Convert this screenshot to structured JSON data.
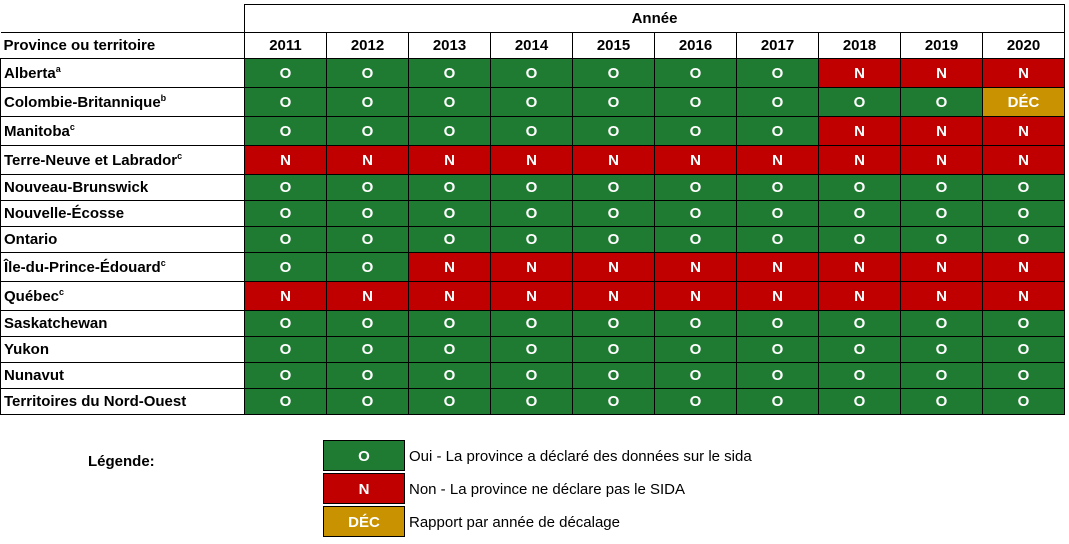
{
  "header": {
    "province_label": "Province ou territoire",
    "year_group_label": "Année",
    "years": [
      "2011",
      "2012",
      "2013",
      "2014",
      "2015",
      "2016",
      "2017",
      "2018",
      "2019",
      "2020"
    ]
  },
  "colors": {
    "O": "#1f7b32",
    "N": "#c00000",
    "DEC": "#c89200"
  },
  "rows": [
    {
      "name": "Alberta",
      "sup": "a",
      "values": [
        "O",
        "O",
        "O",
        "O",
        "O",
        "O",
        "O",
        "N",
        "N",
        "N"
      ]
    },
    {
      "name": "Colombie-Britannique",
      "sup": "b",
      "values": [
        "O",
        "O",
        "O",
        "O",
        "O",
        "O",
        "O",
        "O",
        "O",
        "DÉC"
      ]
    },
    {
      "name": "Manitoba",
      "sup": "c",
      "values": [
        "O",
        "O",
        "O",
        "O",
        "O",
        "O",
        "O",
        "N",
        "N",
        "N"
      ]
    },
    {
      "name": "Terre-Neuve et Labrador",
      "sup": "c",
      "values": [
        "N",
        "N",
        "N",
        "N",
        "N",
        "N",
        "N",
        "N",
        "N",
        "N"
      ]
    },
    {
      "name": "Nouveau-Brunswick",
      "sup": "",
      "values": [
        "O",
        "O",
        "O",
        "O",
        "O",
        "O",
        "O",
        "O",
        "O",
        "O"
      ]
    },
    {
      "name": "Nouvelle-Écosse",
      "sup": "",
      "values": [
        "O",
        "O",
        "O",
        "O",
        "O",
        "O",
        "O",
        "O",
        "O",
        "O"
      ]
    },
    {
      "name": "Ontario",
      "sup": "",
      "values": [
        "O",
        "O",
        "O",
        "O",
        "O",
        "O",
        "O",
        "O",
        "O",
        "O"
      ]
    },
    {
      "name": "Île-du-Prince-Édouard",
      "sup": "c",
      "values": [
        "O",
        "O",
        "N",
        "N",
        "N",
        "N",
        "N",
        "N",
        "N",
        "N"
      ]
    },
    {
      "name": "Québec",
      "sup": "c",
      "values": [
        "N",
        "N",
        "N",
        "N",
        "N",
        "N",
        "N",
        "N",
        "N",
        "N"
      ]
    },
    {
      "name": "Saskatchewan",
      "sup": "",
      "values": [
        "O",
        "O",
        "O",
        "O",
        "O",
        "O",
        "O",
        "O",
        "O",
        "O"
      ]
    },
    {
      "name": "Yukon",
      "sup": "",
      "values": [
        "O",
        "O",
        "O",
        "O",
        "O",
        "O",
        "O",
        "O",
        "O",
        "O"
      ]
    },
    {
      "name": "Nunavut",
      "sup": "",
      "values": [
        "O",
        "O",
        "O",
        "O",
        "O",
        "O",
        "O",
        "O",
        "O",
        "O"
      ]
    },
    {
      "name": "Territoires du Nord-Ouest",
      "sup": "",
      "values": [
        "O",
        "O",
        "O",
        "O",
        "O",
        "O",
        "O",
        "O",
        "O",
        "O"
      ]
    }
  ],
  "legend": {
    "title": "Légende:",
    "items": [
      {
        "code": "O",
        "text": "Oui - La province a déclaré des données sur le sida"
      },
      {
        "code": "N",
        "text": "Non - La province ne déclare pas le SIDA"
      },
      {
        "code": "DÉC",
        "text": "Rapport par année de décalage"
      }
    ]
  }
}
